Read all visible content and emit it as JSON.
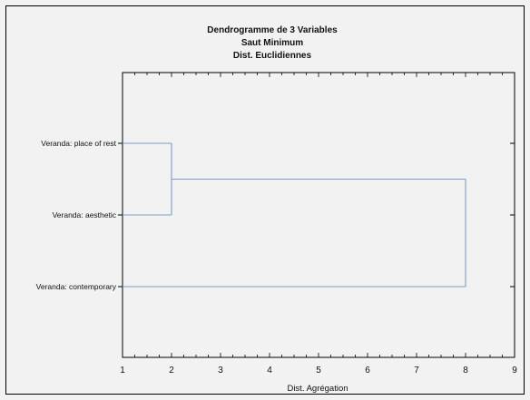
{
  "chart_data": {
    "type": "dendrogram",
    "title_lines": [
      "Dendrogramme de 3  Variables",
      "Saut Minimum",
      "Dist. Euclidiennes"
    ],
    "xlabel": "Dist. Agrégation",
    "xlim": [
      1,
      9
    ],
    "x_ticks": [
      "1",
      "2",
      "3",
      "4",
      "5",
      "6",
      "7",
      "8",
      "9"
    ],
    "leaves": [
      "Veranda: place of rest",
      "Veranda: aesthetic",
      "Veranda: contemporary"
    ],
    "merges": [
      {
        "members": [
          "Veranda: place of rest",
          "Veranda: aesthetic"
        ],
        "distance": 2.0
      },
      {
        "members": [
          "cluster-1",
          "Veranda: contemporary"
        ],
        "distance": 8.0
      }
    ],
    "line_color": "#7f9cc4",
    "grid": false
  }
}
